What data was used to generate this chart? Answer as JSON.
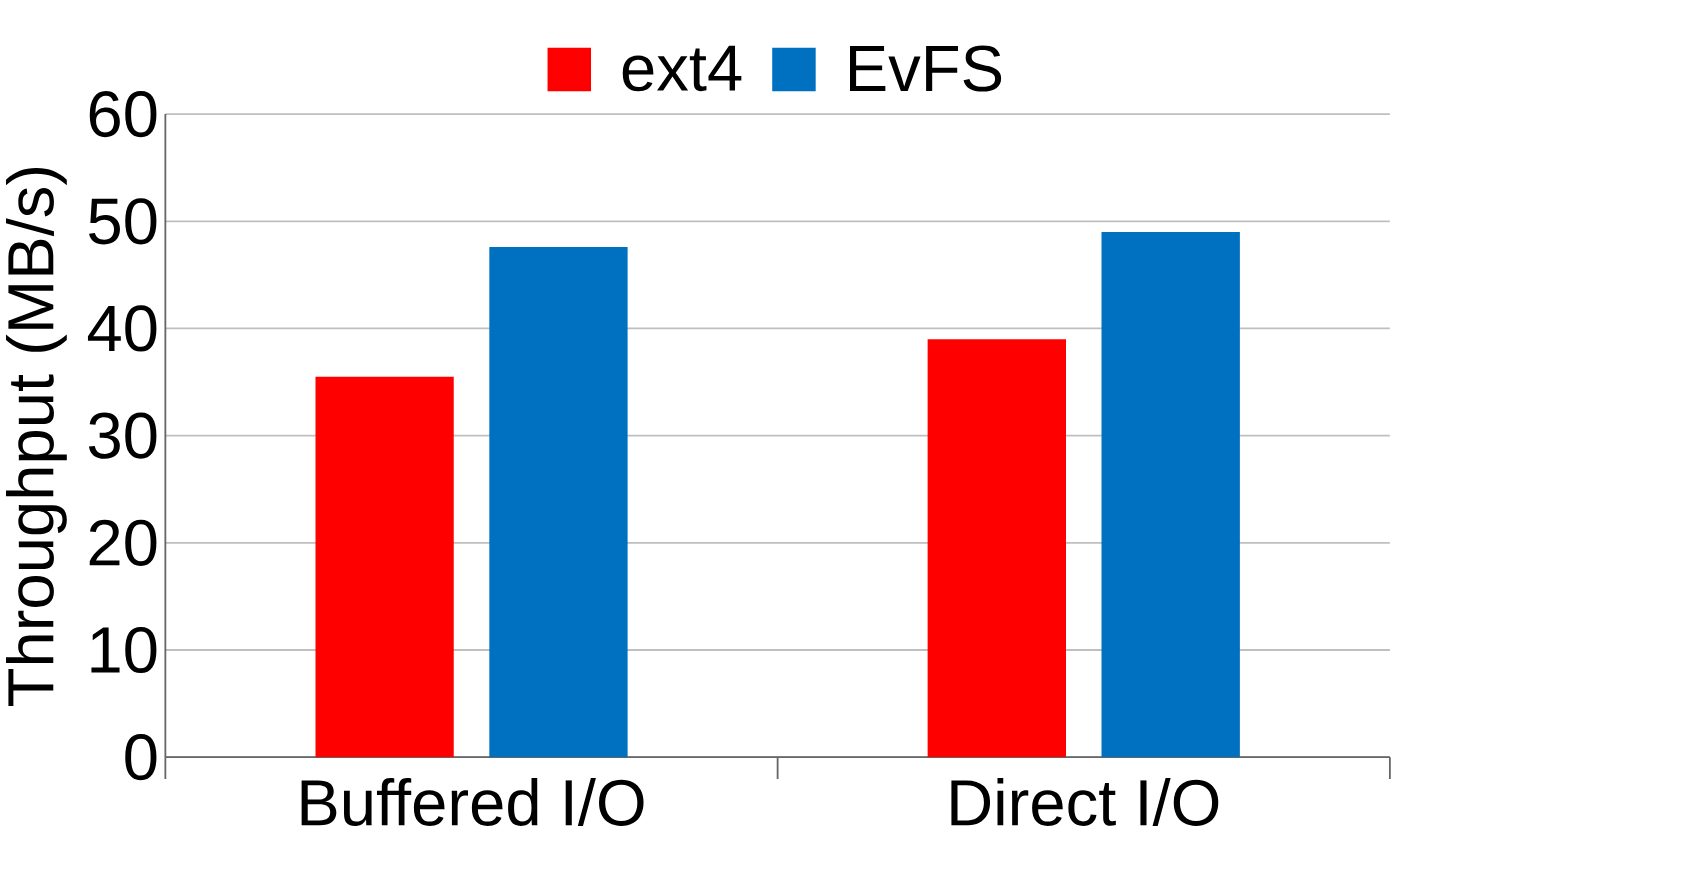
{
  "chart_data": {
    "type": "bar",
    "ylabel": "Throughput (MB/s)",
    "categories": [
      "Buffered I/O",
      "Direct I/O"
    ],
    "series": [
      {
        "name": "ext4",
        "color": "#ff0000",
        "values": [
          35.5,
          39.0
        ]
      },
      {
        "name": "EvFS",
        "color": "#0070c0",
        "values": [
          47.6,
          49.0
        ]
      }
    ],
    "ylim": [
      0,
      60
    ],
    "yticks": [
      0,
      10,
      20,
      30,
      40,
      50,
      60
    ],
    "grid": "y",
    "legend": "top"
  }
}
